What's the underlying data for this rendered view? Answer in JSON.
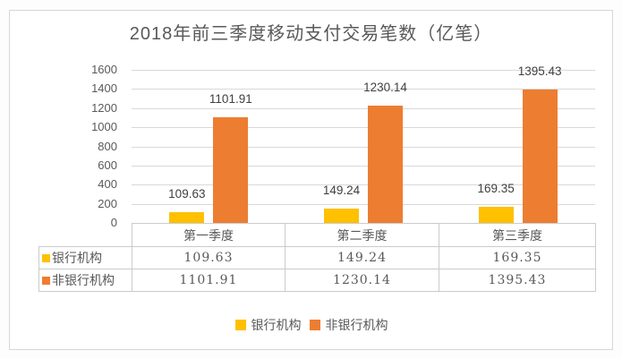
{
  "title": "2018年前三季度移动支付交易笔数（亿笔）",
  "chart_data": {
    "type": "bar",
    "title": "2018年前三季度移动支付交易笔数（亿笔）",
    "categories": [
      "第一季度",
      "第二季度",
      "第三季度"
    ],
    "series": [
      {
        "key": "bank",
        "name": "银行机构",
        "color": "#FFC000",
        "values": [
          109.63,
          149.24,
          169.35
        ]
      },
      {
        "key": "non-bank",
        "name": "非银行机构",
        "color": "#ED7D31",
        "values": [
          1101.91,
          1230.14,
          1395.43
        ]
      }
    ],
    "xlabel": "",
    "ylabel": "",
    "ylim": [
      0,
      1600
    ],
    "ytick_step": 200,
    "yticks": [
      0,
      200,
      400,
      600,
      800,
      1000,
      1200,
      1400,
      1600
    ],
    "grid": true,
    "data_labels": true,
    "data_table": true,
    "legend_position": "bottom"
  }
}
